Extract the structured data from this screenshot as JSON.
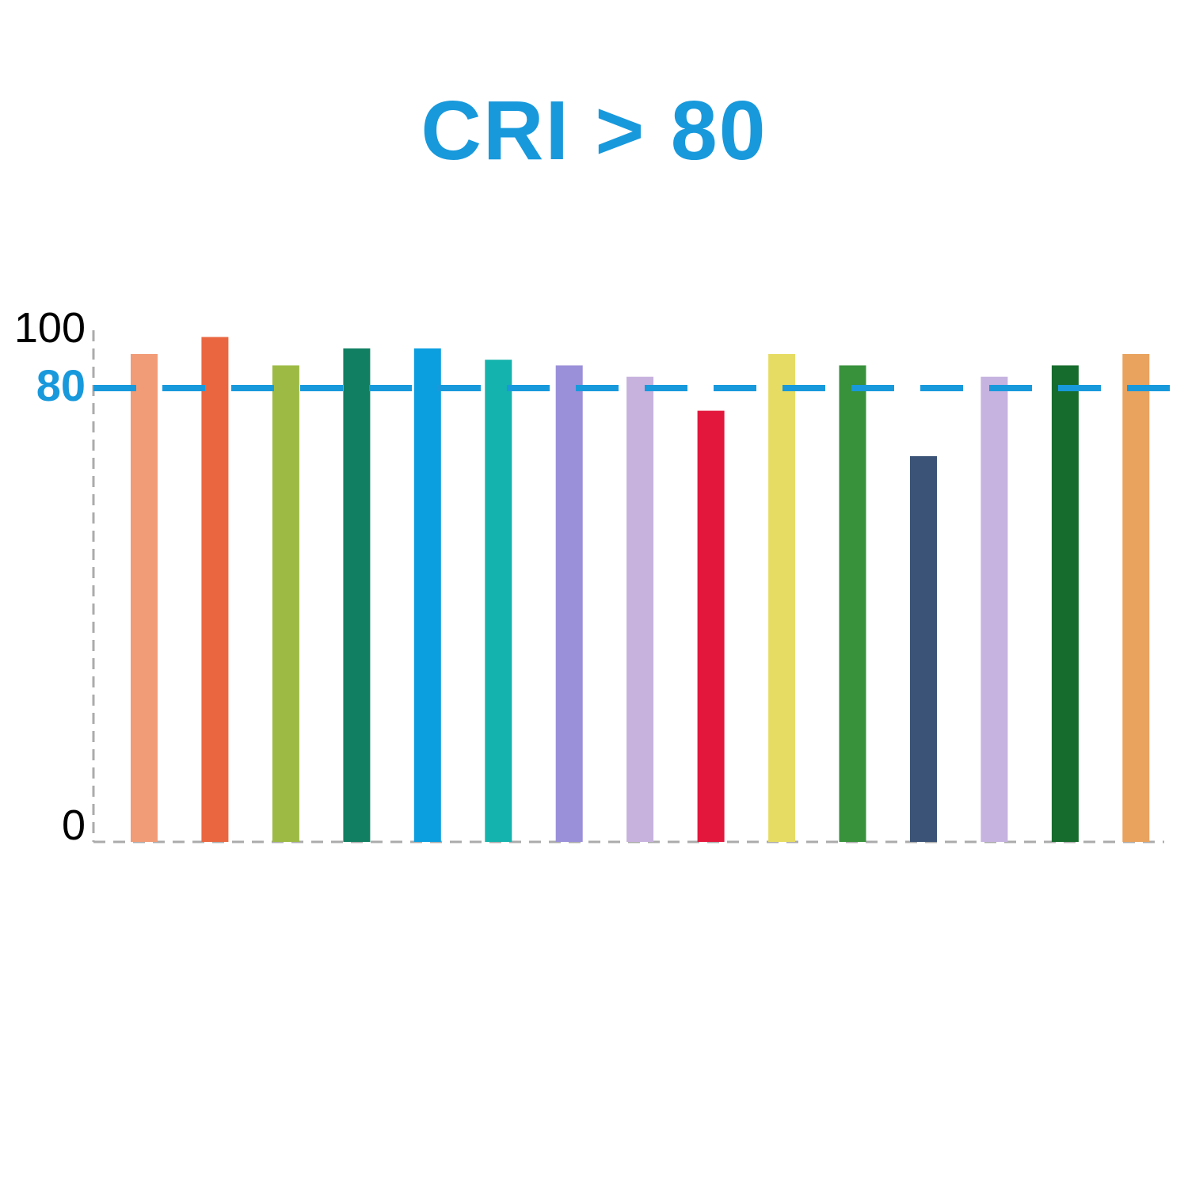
{
  "title": {
    "text": "CRI > 80"
  },
  "colors": {
    "accent_blue": "#1899DC",
    "axis_gray": "#ABABAB",
    "tick_black": "#000000",
    "background": "#FFFFFF"
  },
  "chart_data": {
    "type": "bar",
    "title": "CRI > 80",
    "xlabel": "",
    "ylabel": "",
    "ylim": [
      0,
      100
    ],
    "grid": "off",
    "legend": "none",
    "x_tick_labels": [],
    "y_ticks": [
      {
        "label": "100",
        "value": 100,
        "highlight": false
      },
      {
        "label": "80",
        "value": 80,
        "highlight": true
      },
      {
        "label": "0",
        "value": 0,
        "highlight": false
      }
    ],
    "reference_line": {
      "value": 80,
      "label": "80",
      "style": "dashed",
      "color": "#1899DC"
    },
    "values": [
      86,
      89,
      84,
      87,
      87,
      85,
      84,
      82,
      76,
      86,
      84,
      68,
      82,
      84,
      86
    ],
    "bar_colors": [
      "#F29B77",
      "#EA6641",
      "#9DBB44",
      "#118062",
      "#0C9FE0",
      "#15B3AD",
      "#9A8FD9",
      "#C7B2DD",
      "#E3173C",
      "#E7DC63",
      "#38913B",
      "#3B5377",
      "#C6B3E0",
      "#166C2C",
      "#E9A35E"
    ]
  }
}
